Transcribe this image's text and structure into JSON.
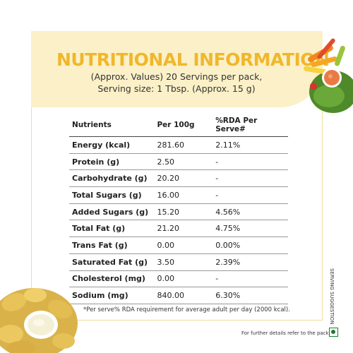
{
  "header": {
    "title": "NUTRITIONAL INFORMATION",
    "subtitle_line1": "(Approx. Values) 20 Servings per pack,",
    "subtitle_line2": "Serving size: 1 Tbsp. (Approx. 15 g)"
  },
  "table": {
    "columns": [
      "Nutrients",
      "Per 100g",
      "%RDA Per Serve#"
    ],
    "rows": [
      {
        "nutrient": "Energy (kcal)",
        "per100g": "281.60",
        "rda": "2.11%"
      },
      {
        "nutrient": "Protein (g)",
        "per100g": "2.50",
        "rda": "-"
      },
      {
        "nutrient": "Carbohydrate (g)",
        "per100g": "20.20",
        "rda": "-"
      },
      {
        "nutrient": "Total Sugars (g)",
        "per100g": "16.00",
        "rda": "-"
      },
      {
        "nutrient": "Added Sugars (g)",
        "per100g": "15.20",
        "rda": "4.56%"
      },
      {
        "nutrient": "Total Fat (g)",
        "per100g": "21.20",
        "rda": "4.75%"
      },
      {
        "nutrient": "Trans Fat (g)",
        "per100g": "0.00",
        "rda": "0.00%"
      },
      {
        "nutrient": "Saturated Fat (g)",
        "per100g": "3.50",
        "rda": "2.39%"
      },
      {
        "nutrient": "Cholesterol (mg)",
        "per100g": "0.00",
        "rda": "-"
      },
      {
        "nutrient": "Sodium (mg)",
        "per100g": "840.00",
        "rda": "6.30%"
      }
    ]
  },
  "footnote": "*Per serve% RDA requirement for average adult per day (2000 kcal).",
  "details_note": "For further details refer to the pack.",
  "side_label": "SERVING SUGGESTION",
  "icons": {
    "veg_mark": "veg-symbol-icon",
    "vegetables": "vegetable-bowl-image",
    "chips": "chips-dip-image"
  },
  "colors": {
    "title": "#f0b72b",
    "header_bg": "#fbf0c7",
    "frame": "#f2dc9c",
    "veg_green": "#1b7d2f"
  }
}
